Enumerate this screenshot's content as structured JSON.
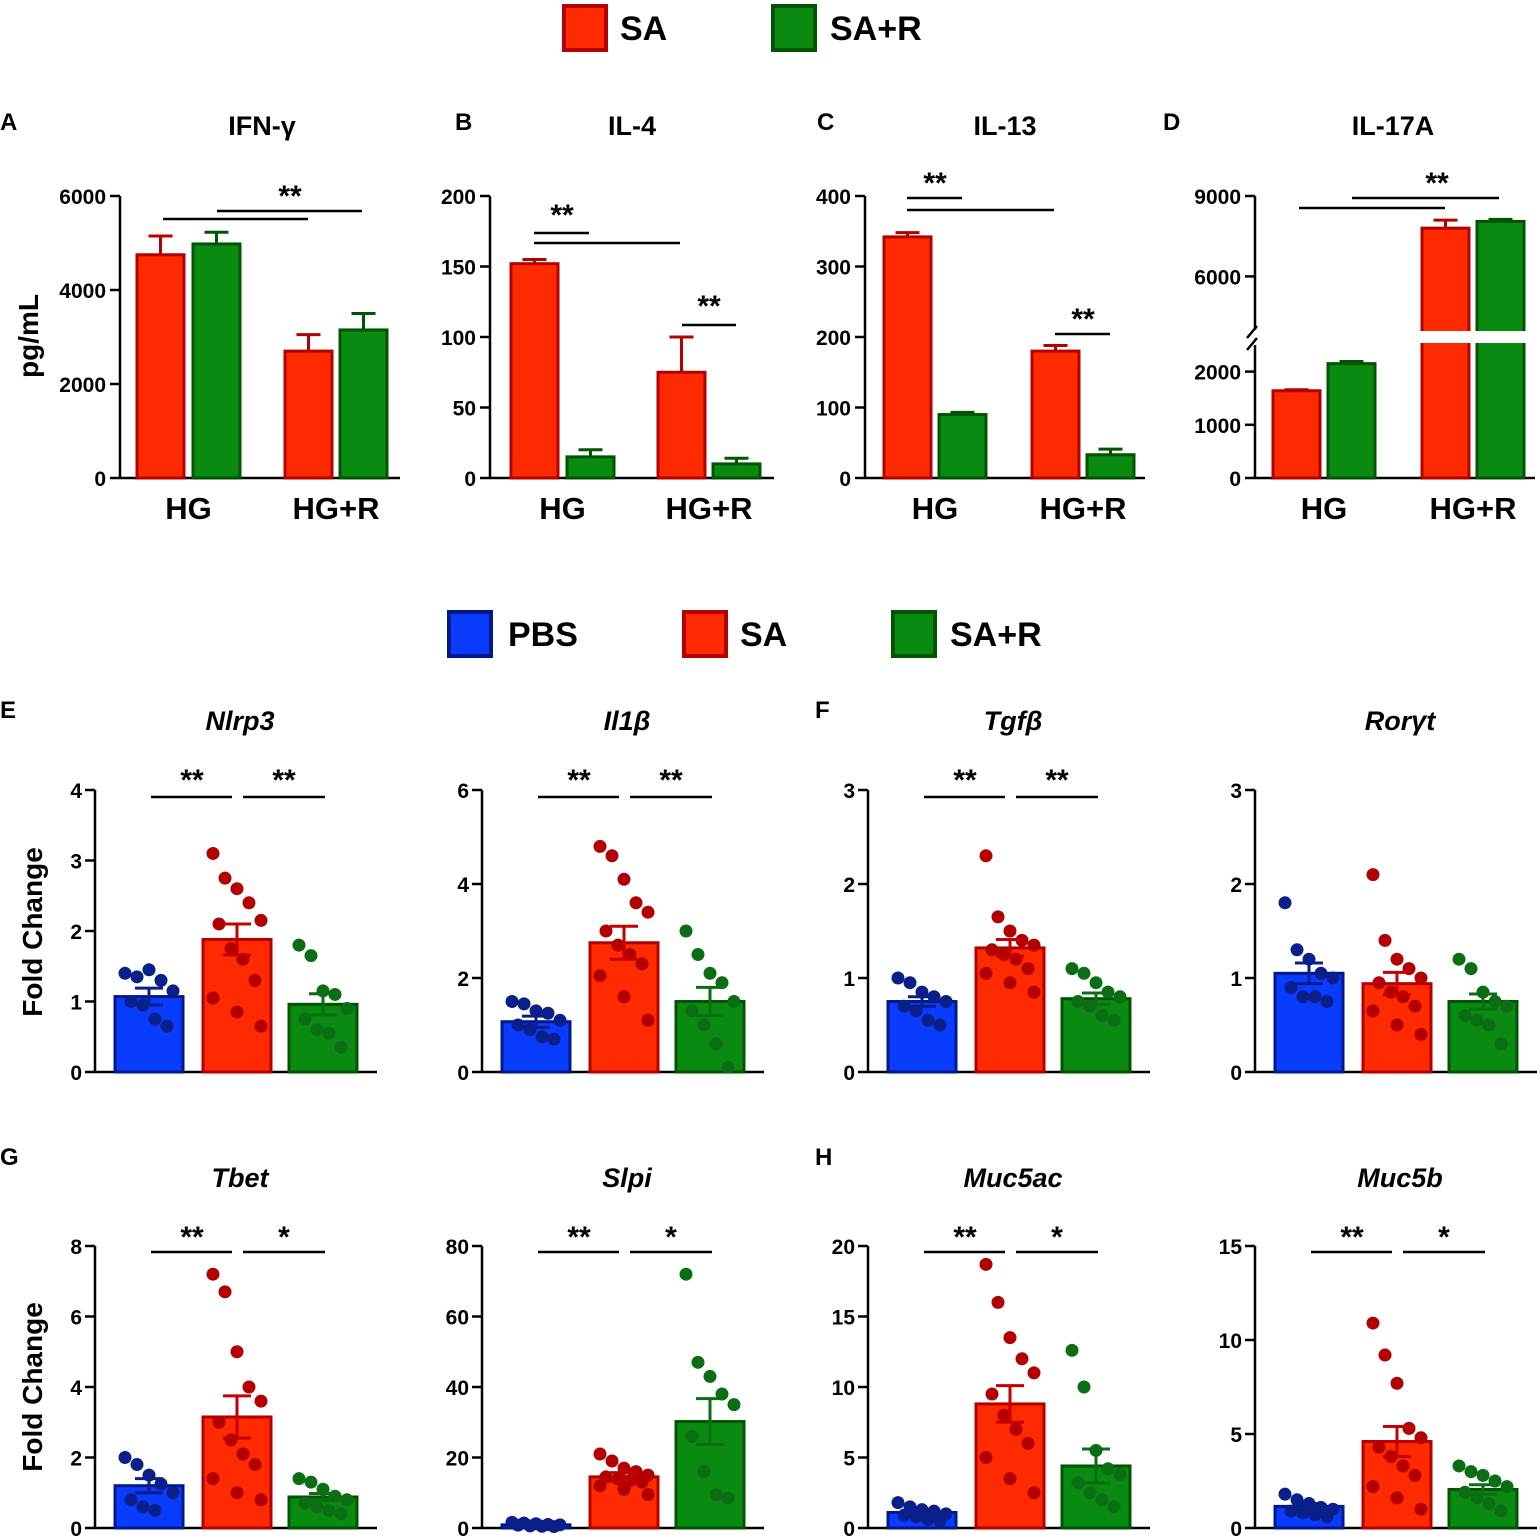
{
  "chart_data": {
    "legends": [
      {
        "items": [
          {
            "label": "SA",
            "color": "#ff2a00",
            "border": "#b50000"
          },
          {
            "label": "SA+R",
            "color": "#0b8a12",
            "border": "#005500"
          }
        ]
      },
      {
        "items": [
          {
            "label": "PBS",
            "color": "#0a3cff",
            "border": "#001a8c"
          },
          {
            "label": "SA",
            "color": "#ff2a00",
            "border": "#b50000"
          },
          {
            "label": "SA+R",
            "color": "#0b8a12",
            "border": "#005500"
          }
        ]
      }
    ],
    "ylabels": {
      "cytokine": "pg/mL",
      "gene": "Fold Change"
    },
    "cytokine_panels": [
      {
        "letter": "A",
        "title": "IFN-γ",
        "type": "bar",
        "categories": [
          "HG",
          "HG+R"
        ],
        "ylim": [
          0,
          6000
        ],
        "yticks": [
          0,
          2000,
          4000,
          6000
        ],
        "series": [
          {
            "name": "SA",
            "values": [
              4750,
              2700
            ],
            "errors": [
              400,
              350
            ]
          },
          {
            "name": "SA+R",
            "values": [
              4980,
              3150
            ],
            "errors": [
              250,
              350
            ]
          }
        ],
        "annotations": [
          {
            "text": "**",
            "from": "HG",
            "to": "HG+R"
          }
        ]
      },
      {
        "letter": "B",
        "title": "IL-4",
        "type": "bar",
        "categories": [
          "HG",
          "HG+R"
        ],
        "ylim": [
          0,
          200
        ],
        "yticks": [
          0,
          50,
          100,
          150,
          200
        ],
        "series": [
          {
            "name": "SA",
            "values": [
              152,
              75
            ],
            "errors": [
              3,
              25
            ]
          },
          {
            "name": "SA+R",
            "values": [
              15,
              10
            ],
            "errors": [
              5,
              4
            ]
          }
        ],
        "annotations": [
          {
            "text": "**",
            "between": "SA HG vs SA+R HG"
          },
          {
            "text": "**",
            "between": "SA HG+R vs SA+R HG+R"
          }
        ]
      },
      {
        "letter": "C",
        "title": "IL-13",
        "type": "bar",
        "categories": [
          "HG",
          "HG+R"
        ],
        "ylim": [
          0,
          400
        ],
        "yticks": [
          0,
          100,
          200,
          300,
          400
        ],
        "series": [
          {
            "name": "SA",
            "values": [
              342,
              180
            ],
            "errors": [
              6,
              8
            ]
          },
          {
            "name": "SA+R",
            "values": [
              90,
              33
            ],
            "errors": [
              3,
              8
            ]
          }
        ],
        "annotations": [
          {
            "text": "**",
            "between": "SA HG vs SA+R HG"
          },
          {
            "text": "**",
            "between": "SA HG+R vs SA+R HG+R"
          }
        ]
      },
      {
        "letter": "D",
        "title": "IL-17A",
        "type": "bar",
        "categories": [
          "HG",
          "HG+R"
        ],
        "yticks": [
          0,
          1000,
          2000,
          6000,
          9000
        ],
        "axis_break": [
          2500,
          4000
        ],
        "series": [
          {
            "name": "SA",
            "values": [
              1640,
              7800
            ],
            "errors": [
              20,
              300
            ]
          },
          {
            "name": "SA+R",
            "values": [
              2150,
              8050
            ],
            "errors": [
              40,
              80
            ]
          }
        ],
        "annotations": [
          {
            "text": "**",
            "from": "HG",
            "to": "HG+R"
          }
        ]
      }
    ],
    "gene_panels": [
      {
        "letter": "E",
        "title": "Nlrp3",
        "ylim": [
          0,
          4
        ],
        "yticks": [
          0,
          1,
          2,
          3,
          4
        ],
        "means": [
          1.07,
          1.88,
          0.96
        ],
        "sems": [
          0.12,
          0.22,
          0.15
        ],
        "points": [
          [
            1.4,
            1.35,
            1.45,
            1.3,
            1.15,
            1.0,
            0.95,
            0.75,
            0.65
          ],
          [
            3.1,
            2.75,
            2.6,
            2.4,
            2.15,
            2.1,
            1.75,
            1.6,
            1.3,
            1.05,
            0.85,
            0.65
          ],
          [
            1.8,
            1.65,
            1.15,
            1.1,
            0.9,
            0.75,
            0.6,
            0.55,
            0.35
          ]
        ],
        "sig": [
          "**",
          "**"
        ]
      },
      {
        "letter": "",
        "title": "Il1β",
        "ylim": [
          0,
          6
        ],
        "yticks": [
          0,
          2,
          4,
          6
        ],
        "means": [
          1.07,
          2.75,
          1.5
        ],
        "sems": [
          0.12,
          0.35,
          0.3
        ],
        "points": [
          [
            1.5,
            1.45,
            1.3,
            1.25,
            1.1,
            1.0,
            0.9,
            0.75,
            0.7
          ],
          [
            4.8,
            4.6,
            4.1,
            3.6,
            3.4,
            3.0,
            2.7,
            2.5,
            2.3,
            2.05,
            1.6,
            1.1
          ],
          [
            3.0,
            2.5,
            2.1,
            1.9,
            1.5,
            1.3,
            1.0,
            0.6,
            0.1
          ]
        ],
        "sig": [
          "**",
          "**"
        ]
      },
      {
        "letter": "F",
        "title": "Tgfβ",
        "ylim": [
          0,
          3
        ],
        "yticks": [
          0,
          1,
          2,
          3
        ],
        "means": [
          0.75,
          1.32,
          0.78
        ],
        "sems": [
          0.05,
          0.09,
          0.06
        ],
        "points": [
          [
            1.0,
            0.95,
            0.85,
            0.8,
            0.75,
            0.7,
            0.65,
            0.55,
            0.5
          ],
          [
            2.3,
            1.65,
            1.5,
            1.4,
            1.35,
            1.3,
            1.25,
            1.2,
            1.1,
            1.05,
            0.95,
            0.85
          ],
          [
            1.1,
            1.05,
            0.95,
            0.85,
            0.8,
            0.75,
            0.7,
            0.6,
            0.55
          ]
        ],
        "sig": [
          "**",
          "**"
        ]
      },
      {
        "letter": "",
        "title": "Rorγt",
        "ylim": [
          0,
          3
        ],
        "yticks": [
          0,
          1,
          2,
          3
        ],
        "means": [
          1.05,
          0.94,
          0.75
        ],
        "sems": [
          0.11,
          0.12,
          0.08
        ],
        "points": [
          [
            1.8,
            1.3,
            1.2,
            1.05,
            1.0,
            0.9,
            0.8,
            0.8,
            0.75
          ],
          [
            2.1,
            1.4,
            1.2,
            1.1,
            1.0,
            0.95,
            0.85,
            0.8,
            0.7,
            0.65,
            0.5,
            0.4
          ],
          [
            1.2,
            1.1,
            0.85,
            0.75,
            0.7,
            0.6,
            0.55,
            0.5,
            0.3
          ]
        ],
        "sig": []
      },
      {
        "letter": "G",
        "title": "Tbet",
        "ylim": [
          0,
          8
        ],
        "yticks": [
          0,
          2,
          4,
          6,
          8
        ],
        "means": [
          1.2,
          3.15,
          0.88
        ],
        "sems": [
          0.2,
          0.6,
          0.1
        ],
        "points": [
          [
            2.0,
            1.8,
            1.5,
            1.25,
            1.0,
            0.8,
            0.6,
            0.5
          ],
          [
            7.2,
            6.7,
            5.0,
            4.0,
            3.6,
            3.0,
            2.5,
            2.1,
            1.8,
            1.4,
            1.0,
            0.8
          ],
          [
            1.4,
            1.3,
            1.1,
            0.9,
            0.8,
            0.7,
            0.6,
            0.5,
            0.4
          ]
        ],
        "sig": [
          "**",
          "*"
        ]
      },
      {
        "letter": "",
        "title": "Slpi",
        "ylim": [
          0,
          80
        ],
        "yticks": [
          0,
          20,
          40,
          60,
          80
        ],
        "means": [
          0.9,
          14.5,
          30.2
        ],
        "sems": [
          0.15,
          1.2,
          6.5
        ],
        "points": [
          [
            1.6,
            1.4,
            1.2,
            1.0,
            0.9,
            0.8,
            0.6,
            0.5,
            0.4
          ],
          [
            21,
            19,
            17,
            16,
            15,
            14.5,
            14,
            13.5,
            13,
            12,
            11,
            9.5
          ],
          [
            72,
            47,
            43,
            38,
            35,
            26,
            16,
            9.5,
            8.5
          ]
        ],
        "sig": [
          "**",
          "*"
        ]
      },
      {
        "letter": "H",
        "title": "Muc5ac",
        "ylim": [
          0,
          20
        ],
        "yticks": [
          0,
          5,
          10,
          15,
          20
        ],
        "means": [
          1.1,
          8.8,
          4.4
        ],
        "sems": [
          0.15,
          1.3,
          1.2
        ],
        "points": [
          [
            1.8,
            1.5,
            1.3,
            1.2,
            1.0,
            0.9,
            0.8,
            0.6,
            0.5
          ],
          [
            18.7,
            16.0,
            13.5,
            12.0,
            11.0,
            9.5,
            8.0,
            7.0,
            6.0,
            5.0,
            3.5,
            2.5
          ],
          [
            12.6,
            10.0,
            5.5,
            4.2,
            3.8,
            3.2,
            2.5,
            2.0,
            1.5
          ]
        ],
        "sig": [
          "**",
          "*"
        ]
      },
      {
        "letter": "",
        "title": "Muc5b",
        "ylim": [
          0,
          15
        ],
        "yticks": [
          0,
          5,
          10,
          15
        ],
        "means": [
          1.15,
          4.6,
          2.05
        ],
        "sems": [
          0.15,
          0.8,
          0.25
        ],
        "points": [
          [
            1.8,
            1.5,
            1.3,
            1.1,
            1.0,
            0.9,
            0.8,
            0.7,
            0.6
          ],
          [
            10.9,
            9.2,
            7.7,
            5.3,
            4.8,
            4.3,
            3.8,
            3.3,
            2.8,
            2.2,
            1.6,
            1.0
          ],
          [
            3.3,
            3.0,
            2.8,
            2.5,
            2.2,
            1.9,
            1.6,
            1.3,
            0.9
          ]
        ],
        "sig": [
          "**",
          "*"
        ]
      }
    ]
  }
}
